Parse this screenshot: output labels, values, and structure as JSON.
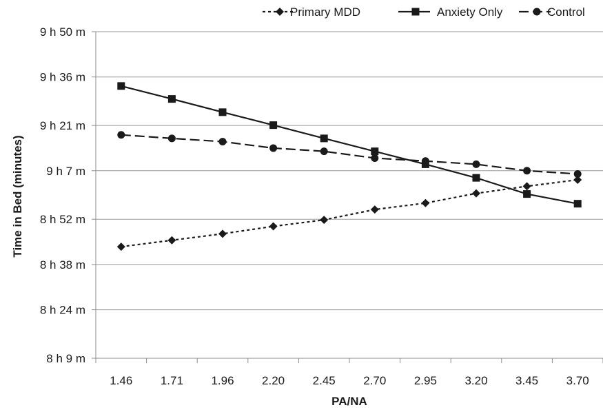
{
  "chart_data": {
    "type": "line",
    "title": "",
    "xlabel": "PA/NA",
    "ylabel": "Time in Bed (minutes)",
    "categories": [
      "1.46",
      "1.71",
      "1.96",
      "2.20",
      "2.45",
      "2.70",
      "2.95",
      "3.20",
      "3.45",
      "3.70"
    ],
    "y_ticks": [
      {
        "value": 489,
        "label": "8 h 9 m"
      },
      {
        "value": 504,
        "label": "8 h 24 m"
      },
      {
        "value": 518,
        "label": "8 h 38 m"
      },
      {
        "value": 532,
        "label": "8 h 52 m"
      },
      {
        "value": 547,
        "label": "9 h 7 m"
      },
      {
        "value": 561,
        "label": "9 h 21 m"
      },
      {
        "value": 576,
        "label": "9 h 36 m"
      },
      {
        "value": 590,
        "label": "9 h 50 m"
      }
    ],
    "ylim": [
      489,
      590
    ],
    "grid": true,
    "legend_position": "top-right",
    "series": [
      {
        "name": "Primary MDD",
        "marker": "diamond",
        "dash": "dotted",
        "values": [
          523.5,
          525.5,
          527.5,
          529.8,
          531.8,
          535.0,
          537.0,
          540.0,
          542.2,
          544.2
        ]
      },
      {
        "name": "Anxiety Only",
        "marker": "square",
        "dash": "solid",
        "values": [
          573.2,
          569.2,
          565.1,
          561.1,
          557.0,
          553.0,
          549.0,
          544.8,
          539.8,
          536.8
        ]
      },
      {
        "name": "Control",
        "marker": "circle",
        "dash": "dashed",
        "values": [
          558.1,
          557.0,
          556.0,
          554.0,
          553.0,
          550.9,
          550.0,
          549.0,
          547.0,
          546.0
        ]
      }
    ]
  }
}
